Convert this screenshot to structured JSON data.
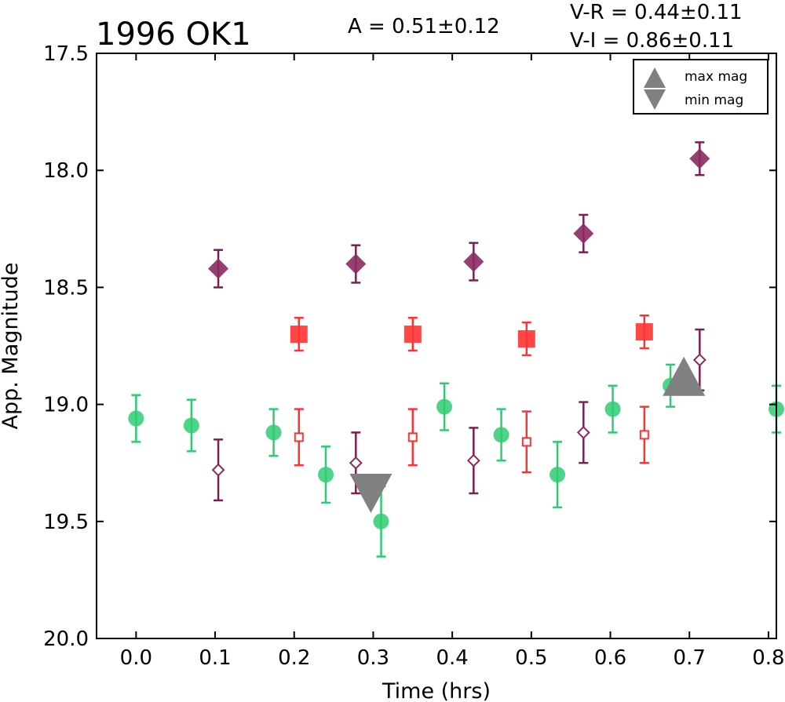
{
  "chart_data": {
    "type": "scatter",
    "title": "1996 OK1",
    "annotations": {
      "amplitude": "A  = 0.51±0.12",
      "v_r": "V-R = 0.44±0.11",
      "v_i": "V-I  = 0.86±0.11"
    },
    "xlabel": "Time (hrs)",
    "ylabel": "App. Magnitude",
    "xlim": [
      -0.05,
      0.81
    ],
    "ylim": [
      20.0,
      17.5
    ],
    "y_inverted": true,
    "grid": false,
    "x_ticks": [
      0.0,
      0.1,
      0.2,
      0.3,
      0.4,
      0.5,
      0.6,
      0.7,
      0.8
    ],
    "x_tick_labels": [
      "0.0",
      "0.1",
      "0.2",
      "0.3",
      "0.4",
      "0.5",
      "0.6",
      "0.7",
      "0.8"
    ],
    "y_ticks": [
      17.5,
      18.0,
      18.5,
      19.0,
      19.5,
      20.0
    ],
    "y_tick_labels": [
      "17.5",
      "18.0",
      "18.5",
      "19.0",
      "19.5",
      "20.0"
    ],
    "legend": {
      "placement": "top-right",
      "entries": [
        {
          "label": "max mag",
          "marker": "triangle-up",
          "color": "#808080"
        },
        {
          "label": "min mag",
          "marker": "triangle-down",
          "color": "#808080"
        }
      ]
    },
    "series": [
      {
        "marker": "circle-filled",
        "color": "#2ecc71",
        "points": [
          {
            "x": 0.0,
            "y": 19.06,
            "err": 0.1
          },
          {
            "x": 0.07,
            "y": 19.09,
            "err": 0.11
          },
          {
            "x": 0.174,
            "y": 19.12,
            "err": 0.1
          },
          {
            "x": 0.24,
            "y": 19.3,
            "err": 0.12
          },
          {
            "x": 0.31,
            "y": 19.5,
            "err": 0.15
          },
          {
            "x": 0.39,
            "y": 19.01,
            "err": 0.1
          },
          {
            "x": 0.462,
            "y": 19.13,
            "err": 0.11
          },
          {
            "x": 0.533,
            "y": 19.3,
            "err": 0.14
          },
          {
            "x": 0.603,
            "y": 19.02,
            "err": 0.1
          },
          {
            "x": 0.676,
            "y": 18.92,
            "err": 0.09
          },
          {
            "x": 0.81,
            "y": 19.02,
            "err": 0.1
          }
        ]
      },
      {
        "marker": "square-filled",
        "color": "#ff3333",
        "points": [
          {
            "x": 0.206,
            "y": 18.7,
            "err": 0.07
          },
          {
            "x": 0.35,
            "y": 18.7,
            "err": 0.07
          },
          {
            "x": 0.494,
            "y": 18.72,
            "err": 0.07
          },
          {
            "x": 0.643,
            "y": 18.69,
            "err": 0.07
          }
        ]
      },
      {
        "marker": "square-open",
        "color": "#ff3333",
        "points": [
          {
            "x": 0.206,
            "y": 19.14,
            "err": 0.12
          },
          {
            "x": 0.35,
            "y": 19.14,
            "err": 0.12
          },
          {
            "x": 0.494,
            "y": 19.16,
            "err": 0.13
          },
          {
            "x": 0.643,
            "y": 19.13,
            "err": 0.12
          }
        ]
      },
      {
        "marker": "diamond-filled",
        "color": "#8b2a62",
        "points": [
          {
            "x": 0.104,
            "y": 18.42,
            "err": 0.08
          },
          {
            "x": 0.278,
            "y": 18.4,
            "err": 0.08
          },
          {
            "x": 0.427,
            "y": 18.39,
            "err": 0.08
          },
          {
            "x": 0.566,
            "y": 18.27,
            "err": 0.08
          },
          {
            "x": 0.713,
            "y": 17.95,
            "err": 0.07
          }
        ]
      },
      {
        "marker": "diamond-open",
        "color": "#8b2a62",
        "points": [
          {
            "x": 0.104,
            "y": 19.28,
            "err": 0.13
          },
          {
            "x": 0.278,
            "y": 19.25,
            "err": 0.13
          },
          {
            "x": 0.427,
            "y": 19.24,
            "err": 0.14
          },
          {
            "x": 0.566,
            "y": 19.12,
            "err": 0.13
          },
          {
            "x": 0.713,
            "y": 18.81,
            "err": 0.13
          }
        ]
      }
    ],
    "extrema": [
      {
        "kind": "max",
        "marker": "triangle-up",
        "color": "#808080",
        "x": 0.693,
        "y": 18.88
      },
      {
        "kind": "min",
        "marker": "triangle-down",
        "color": "#808080",
        "x": 0.297,
        "y": 19.38
      }
    ]
  }
}
